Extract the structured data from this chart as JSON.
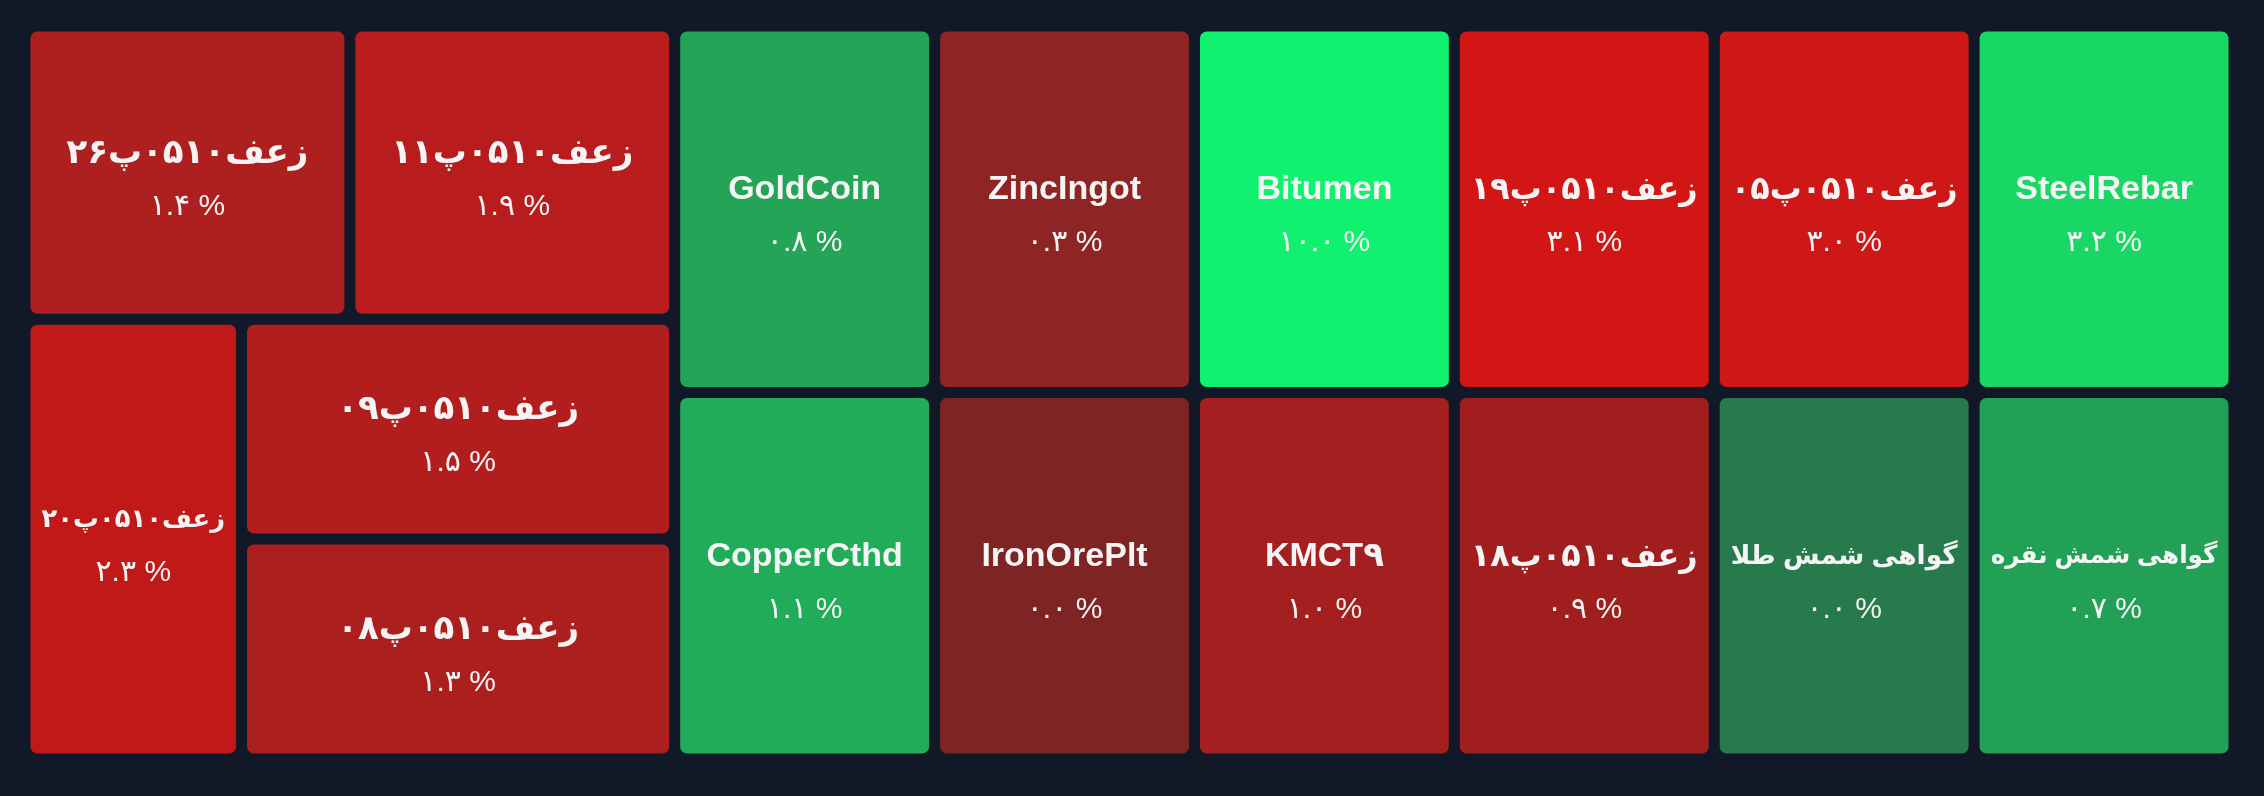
{
  "chart_data": {
    "type": "other",
    "categories": [
      "SteelRebar",
      "گواهی شمش نقره",
      "زعف۰۵۱۰پ۰۵",
      "گواهی شمش طلا",
      "زعف۰۵۱۰پ۱۹",
      "زعف۰۵۱۰پ۱۸",
      "Bitumen",
      "KMCT۹",
      "ZincIngot",
      "IronOrePlt",
      "GoldCoin",
      "CopperCthd",
      "زعف۰۵۱۰پ۱۱",
      "زعف۰۵۱۰پ۲۶",
      "زعف۰۵۱۰پ۰۹",
      "زعف۰۵۱۰پ۰۸",
      "زعف۰۵۱۰پ۲۰"
    ],
    "values": [
      3.2,
      0.7,
      3.0,
      0.0,
      3.1,
      0.9,
      10.0,
      1.0,
      0.3,
      0.0,
      0.8,
      1.1,
      1.9,
      1.4,
      1.5,
      1.3,
      2.3
    ],
    "value_labels": [
      "۳.۲ %",
      "۰.۷ %",
      "۳.۰ %",
      "۰.۰ %",
      "۳.۱ %",
      "۰.۹ %",
      "۱۰.۰ %",
      "۱.۰ %",
      "۰.۳ %",
      "۰.۰ %",
      "۰.۸ %",
      "۱.۱ %",
      "۱.۹ %",
      "۱.۴ %",
      "۱.۵ %",
      "۱.۳ %",
      "۲.۳ %"
    ],
    "colors": [
      "#19d764",
      "#22a056",
      "#ce1717",
      "#267a4c",
      "#d21616",
      "#a11e1e",
      "#10f26f",
      "#a41f1f",
      "#8f2424",
      "#7f2424",
      "#23a456",
      "#21ac59",
      "#b91c1c",
      "#ae1f1f",
      "#b21d1d",
      "#ac1f1f",
      "#c11818"
    ]
  }
}
